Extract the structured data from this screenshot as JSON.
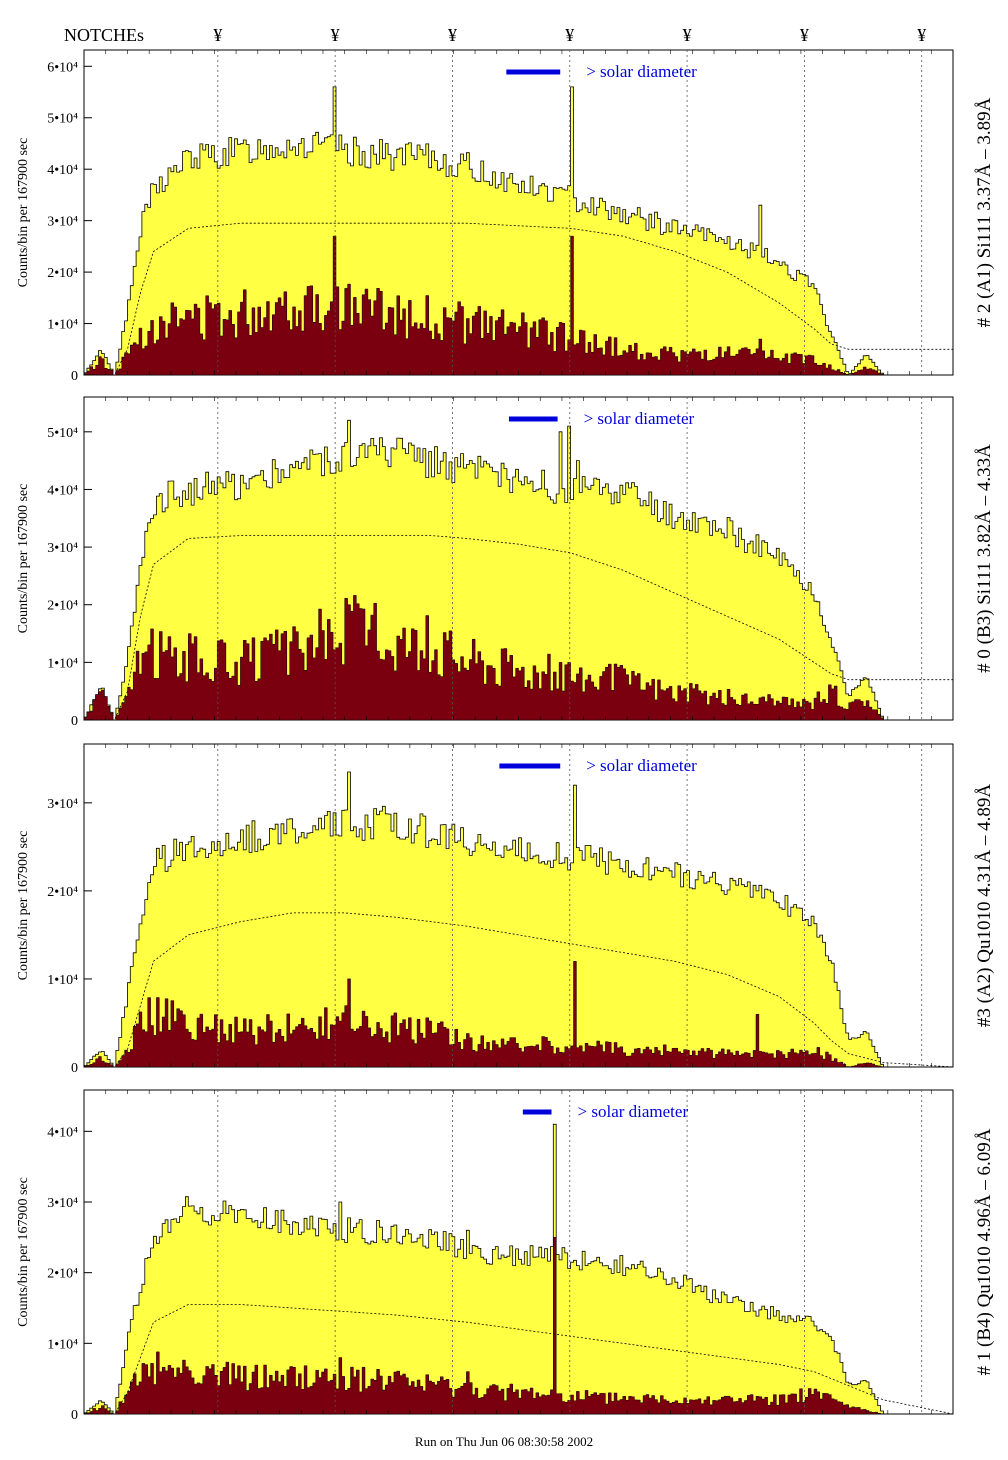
{
  "header": {
    "notches_label": "NOTCHEs",
    "notch_symbol": "¥",
    "notch_positions": [
      0.154,
      0.289,
      0.424,
      0.559,
      0.694,
      0.829,
      0.964
    ]
  },
  "footer": {
    "run_text": "Run on Thu Jun 06 08:30:58 2002"
  },
  "colors": {
    "fill_total": "#ffff44",
    "fill_low": "#7a0010",
    "marker": "#0000dd",
    "annotation": "#000080"
  },
  "chart_data": [
    {
      "type": "area",
      "title": "# 2 (A1) Si111  3.37Å – 3.89Å",
      "ylabel": "Counts/bin per  167900 sec",
      "ylim": [
        0,
        62000
      ],
      "yticks": [
        0,
        10000,
        20000,
        30000,
        40000,
        50000,
        60000
      ],
      "ytick_labels": [
        "0",
        "1•10⁴",
        "2•10⁴",
        "3•10⁴",
        "4•10⁴",
        "5•10⁴",
        "6•10⁴"
      ],
      "marker_label": "> solar diameter",
      "marker_span": [
        0.486,
        0.548
      ],
      "x": [
        0.0,
        0.02,
        0.035,
        0.05,
        0.065,
        0.08,
        0.12,
        0.18,
        0.24,
        0.3,
        0.36,
        0.4,
        0.44,
        0.5,
        0.56,
        0.62,
        0.68,
        0.74,
        0.8,
        0.84,
        0.86,
        0.88,
        0.9,
        0.92,
        1.0
      ],
      "series": [
        {
          "values": [
            0,
            5000,
            0,
            12000,
            28000,
            36000,
            42000,
            43500,
            45000,
            43500,
            42500,
            42000,
            40500,
            37000,
            34500,
            31500,
            28500,
            26000,
            22000,
            17000,
            8000,
            0,
            4000,
            0,
            0
          ]
        },
        {
          "values": [
            0,
            3000,
            0,
            4000,
            8000,
            10000,
            11000,
            12000,
            14000,
            13500,
            12000,
            11000,
            10000,
            9000,
            7000,
            5000,
            4000,
            4000,
            3500,
            3000,
            1500,
            0,
            1500,
            0,
            0
          ]
        },
        {
          "values": [
            0,
            0,
            0,
            5000,
            16000,
            24000,
            28500,
            29500,
            29500,
            29500,
            29500,
            29500,
            29500,
            29000,
            28500,
            27000,
            24000,
            20000,
            14000,
            9000,
            6000,
            5000,
            5000,
            5000,
            5000
          ]
        }
      ],
      "spikes": [
        {
          "x": 0.288,
          "value": 56000,
          "low": 27000
        },
        {
          "x": 0.562,
          "value": 56000,
          "low": 27000
        },
        {
          "x": 0.777,
          "value": 33000,
          "low": 7000
        }
      ]
    },
    {
      "type": "area",
      "title": "# 0 (B3) Si111  3.82Å – 4.33Å",
      "ylabel": "Counts/bin per  167900 sec",
      "ylim": [
        0,
        55000
      ],
      "yticks": [
        0,
        10000,
        20000,
        30000,
        40000,
        50000
      ],
      "ytick_labels": [
        "0",
        "1•10⁴",
        "2•10⁴",
        "3•10⁴",
        "4•10⁴",
        "5•10⁴"
      ],
      "marker_label": "> solar diameter",
      "marker_span": [
        0.489,
        0.545
      ],
      "x": [
        0.0,
        0.02,
        0.035,
        0.05,
        0.065,
        0.08,
        0.12,
        0.18,
        0.24,
        0.3,
        0.36,
        0.4,
        0.44,
        0.5,
        0.56,
        0.62,
        0.68,
        0.74,
        0.8,
        0.84,
        0.86,
        0.88,
        0.9,
        0.92,
        1.0
      ],
      "series": [
        {
          "values": [
            0,
            6000,
            0,
            10000,
            28000,
            38000,
            40000,
            41000,
            44000,
            46000,
            46500,
            45000,
            43500,
            41000,
            40000,
            39500,
            35000,
            33000,
            28000,
            22000,
            14000,
            4000,
            8000,
            0,
            0
          ]
        },
        {
          "values": [
            0,
            6000,
            0,
            4000,
            10000,
            12000,
            11000,
            10000,
            12000,
            16000,
            14000,
            13000,
            11000,
            9000,
            8000,
            7000,
            5000,
            4000,
            3000,
            3000,
            5000,
            2000,
            4000,
            0,
            0
          ]
        },
        {
          "values": [
            0,
            0,
            0,
            5000,
            18000,
            27000,
            31500,
            32000,
            32000,
            32000,
            32000,
            32000,
            31500,
            30500,
            29000,
            26000,
            22000,
            18000,
            14000,
            10000,
            8000,
            7000,
            7000,
            7000,
            7000
          ]
        }
      ],
      "spikes": [
        {
          "x": 0.305,
          "value": 52000,
          "low": 20000
        },
        {
          "x": 0.547,
          "value": 50000,
          "low": 10000
        },
        {
          "x": 0.558,
          "value": 51000,
          "low": 10000
        },
        {
          "x": 0.569,
          "value": 45000,
          "low": 8000
        }
      ]
    },
    {
      "type": "area",
      "title": "#3 (A2) Qu1010  4.31Å – 4.89Å",
      "ylabel": "Counts/bin per  167900 sec",
      "ylim": [
        0,
        36000
      ],
      "yticks": [
        0,
        10000,
        20000,
        30000
      ],
      "ytick_labels": [
        "0",
        "1•10⁴",
        "2•10⁴",
        "3•10⁴"
      ],
      "marker_label": "> solar diameter",
      "marker_span": [
        0.478,
        0.548
      ],
      "x": [
        0.0,
        0.02,
        0.035,
        0.05,
        0.065,
        0.08,
        0.12,
        0.18,
        0.24,
        0.3,
        0.36,
        0.4,
        0.44,
        0.5,
        0.56,
        0.62,
        0.68,
        0.74,
        0.8,
        0.84,
        0.86,
        0.88,
        0.9,
        0.92,
        1.0
      ],
      "series": [
        {
          "values": [
            0,
            2000,
            0,
            8000,
            17000,
            23000,
            25000,
            26000,
            27000,
            27500,
            28000,
            26500,
            25500,
            24500,
            24000,
            23000,
            22000,
            21000,
            19000,
            16000,
            12000,
            3000,
            4000,
            0,
            0
          ]
        },
        {
          "values": [
            0,
            1000,
            0,
            2000,
            5000,
            6000,
            5000,
            4000,
            4500,
            5000,
            4500,
            4000,
            3000,
            2500,
            2500,
            2000,
            1800,
            1500,
            1500,
            2000,
            1000,
            0,
            500,
            0,
            0
          ]
        },
        {
          "values": [
            0,
            0,
            0,
            2000,
            7000,
            12000,
            15000,
            16500,
            17500,
            17500,
            17000,
            16500,
            16000,
            15000,
            14000,
            13000,
            12000,
            10500,
            8000,
            5000,
            3000,
            1500,
            1000,
            500,
            0
          ]
        }
      ],
      "spikes": [
        {
          "x": 0.305,
          "value": 33500,
          "low": 10000
        },
        {
          "x": 0.565,
          "value": 32000,
          "low": 12000
        },
        {
          "x": 0.775,
          "value": 20000,
          "low": 6000
        }
      ]
    },
    {
      "type": "area",
      "title": "# 1 (B4) Qu1010 4.96Å – 6.09Å",
      "ylabel": "Counts/bin per  167900 sec",
      "ylim": [
        0,
        45000
      ],
      "yticks": [
        0,
        10000,
        20000,
        30000,
        40000
      ],
      "ytick_labels": [
        "0",
        "1•10⁴",
        "2•10⁴",
        "3•10⁴",
        "4•10⁴"
      ],
      "marker_label": "> solar diameter",
      "marker_span": [
        0.505,
        0.538
      ],
      "x": [
        0.0,
        0.02,
        0.035,
        0.05,
        0.065,
        0.08,
        0.12,
        0.18,
        0.24,
        0.3,
        0.36,
        0.4,
        0.44,
        0.5,
        0.56,
        0.62,
        0.68,
        0.74,
        0.8,
        0.84,
        0.86,
        0.88,
        0.9,
        0.92,
        1.0
      ],
      "series": [
        {
          "values": [
            0,
            2000,
            0,
            10000,
            18000,
            24000,
            29000,
            28000,
            27000,
            26000,
            25500,
            25000,
            23000,
            22500,
            22000,
            21000,
            19000,
            16000,
            14000,
            13000,
            11000,
            4000,
            5000,
            0,
            0
          ]
        },
        {
          "values": [
            0,
            1000,
            0,
            3000,
            5000,
            7000,
            6000,
            5000,
            5000,
            5000,
            4500,
            4000,
            3500,
            3000,
            2500,
            2200,
            2000,
            2000,
            2000,
            3000,
            2000,
            1000,
            500,
            0,
            0
          ]
        },
        {
          "values": [
            0,
            0,
            0,
            3000,
            8000,
            13000,
            15500,
            15500,
            15000,
            14500,
            14000,
            13500,
            13000,
            12000,
            11000,
            10000,
            9000,
            8000,
            7000,
            6000,
            5000,
            4000,
            3000,
            2000,
            0
          ]
        }
      ],
      "spikes": [
        {
          "x": 0.295,
          "value": 30000,
          "low": 8000
        },
        {
          "x": 0.44,
          "value": 26000,
          "low": 6000
        },
        {
          "x": 0.543,
          "value": 41000,
          "low": 25000
        }
      ]
    }
  ]
}
